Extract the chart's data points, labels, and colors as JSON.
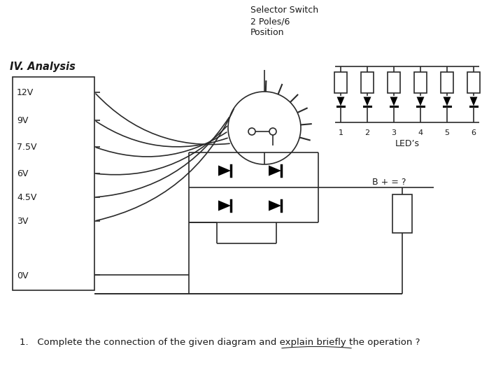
{
  "title": "IV. Analysis",
  "selector_label": [
    "Selector Switch",
    "2 Poles/6",
    "Position"
  ],
  "leds_label": "LED’s",
  "voltage_labels": [
    "12V",
    "9V",
    "7.5V",
    "6V",
    "4.5V",
    "3V",
    "0V"
  ],
  "question": "1.   Complete the connection of the given diagram and explain briefly the operation ?",
  "b_plus_label": "B + = ?",
  "background_color": "#ffffff",
  "line_color": "#2a2a2a",
  "text_color": "#1a1a1a",
  "figsize": [
    7.19,
    5.29
  ],
  "dpi": 100
}
